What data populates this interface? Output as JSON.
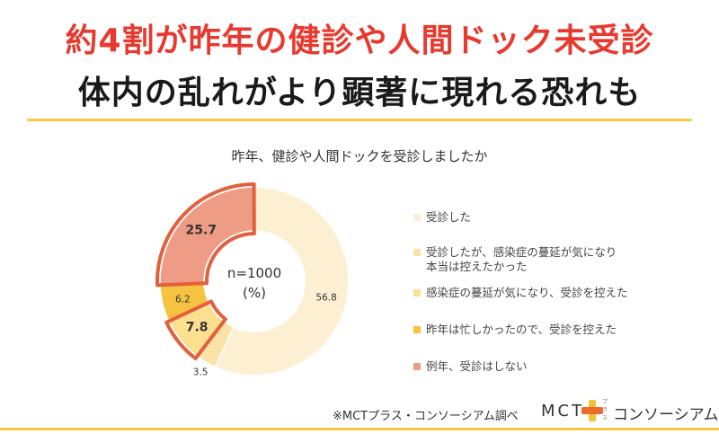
{
  "headline": {
    "line1": "約4割が昨年の健診や人間ドック未受診",
    "line2": "体内の乱れがより顕著に現れる恐れも"
  },
  "chart_data": {
    "type": "pie",
    "title": "昨年、健診や人間ドックを受診しましたか",
    "center_label": [
      "n=1000",
      "(%)"
    ],
    "categories": [
      "受診した",
      "受診したが、感染症の蔓延が気になり本当は控えたかった",
      "感染症の蔓延が気になり、受診を控えた",
      "昨年は忙しかったので、受診を控えた",
      "例年、受診はしない"
    ],
    "legend_lines": [
      [
        "受診した"
      ],
      [
        "受診したが、感染症の蔓延が気になり",
        "本当は控えたかった"
      ],
      [
        "感染症の蔓延が気になり、受診を控えた"
      ],
      [
        "昨年は忙しかったので、受診を控えた"
      ],
      [
        "例年、受診はしない"
      ]
    ],
    "values": [
      56.8,
      3.5,
      7.8,
      6.2,
      25.7
    ],
    "value_labels": [
      "56.8",
      "3.5",
      "7.8",
      "6.2",
      "25.7"
    ],
    "highlighted": [
      false,
      false,
      true,
      false,
      true
    ],
    "colors": [
      "#fdf0d2",
      "#fbe3a8",
      "#fbe08f",
      "#f5c242",
      "#ef9c86"
    ],
    "highlight_color": "#e2603d",
    "legend_position": "right"
  },
  "source_note": "※MCTプラス・コンソーシアム調べ",
  "logo": {
    "mct": "MCT",
    "small": "プラス",
    "name": "コンソーシアム",
    "colors": [
      "#f4c430",
      "#ec6b2d"
    ]
  }
}
